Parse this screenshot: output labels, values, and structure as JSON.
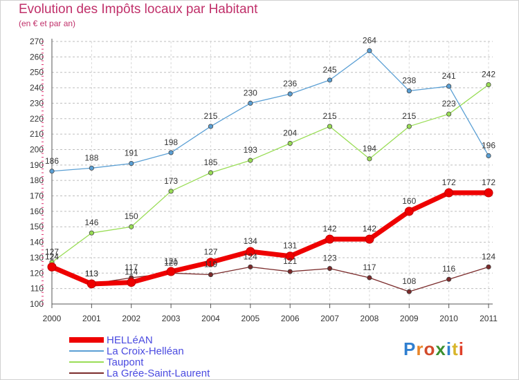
{
  "title": "Evolution des Impôts locaux par Habitant",
  "subtitle": "(en € et par an)",
  "logo": {
    "text": "Proxiti",
    "letter_colors": [
      "#2f7fd0",
      "#e8862a",
      "#d24a2a",
      "#3a8f2e",
      "#2f7fd0",
      "#d8b52a",
      "#e0402a"
    ]
  },
  "chart_data": {
    "type": "line",
    "x": [
      2000,
      2001,
      2002,
      2003,
      2004,
      2005,
      2006,
      2007,
      2008,
      2009,
      2010,
      2011
    ],
    "xticks": [
      "2000",
      "2001",
      "2002",
      "2003",
      "2004",
      "2005",
      "2006",
      "2007",
      "2008",
      "2009",
      "2010",
      "2011"
    ],
    "ylim": [
      100,
      270
    ],
    "yticks": [
      100,
      110,
      120,
      130,
      140,
      150,
      160,
      170,
      180,
      190,
      200,
      210,
      220,
      230,
      240,
      250,
      260,
      270
    ],
    "grid": "horizontal dashed",
    "legend_position": "bottom-left",
    "series": [
      {
        "name": "HELLéAN",
        "color": "#ee0000",
        "values": [
          124,
          113,
          114,
          121,
          127,
          134,
          131,
          142,
          142,
          160,
          172,
          172
        ]
      },
      {
        "name": "La Croix-Helléan",
        "color": "#5a9fd4",
        "values": [
          186,
          188,
          191,
          198,
          215,
          230,
          236,
          245,
          264,
          238,
          241,
          196
        ]
      },
      {
        "name": "Taupont",
        "color": "#99dd55",
        "values": [
          127,
          146,
          150,
          173,
          185,
          193,
          204,
          215,
          194,
          215,
          223,
          242
        ]
      },
      {
        "name": "La Grée-Saint-Laurent",
        "color": "#7a2a2a",
        "values": [
          124,
          113,
          117,
          120,
          119,
          124,
          121,
          123,
          117,
          108,
          116,
          124
        ]
      }
    ]
  }
}
